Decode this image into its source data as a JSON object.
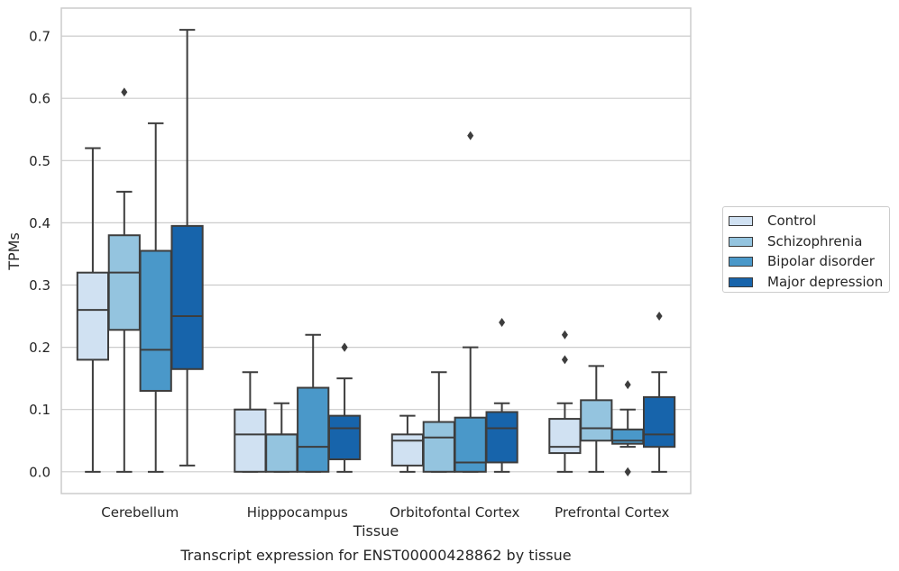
{
  "chart_data": {
    "type": "box",
    "title": "Transcript expression for ENST00000428862 by tissue",
    "xlabel": "Tissue",
    "ylabel": "TPMs",
    "ylim": [
      -0.035,
      0.745
    ],
    "yticks": [
      "0.0",
      "0.1",
      "0.2",
      "0.3",
      "0.4",
      "0.5",
      "0.6",
      "0.7"
    ],
    "categories": [
      "Cerebellum",
      "Hipppocampus",
      "Orbitofontal Cortex",
      "Prefrontal Cortex"
    ],
    "grid": "horizontal",
    "legend_position": "right",
    "series": [
      {
        "name": "Control",
        "color": "#d0e1f2",
        "boxes": [
          {
            "whislo": 0.0,
            "q1": 0.18,
            "med": 0.26,
            "q3": 0.32,
            "whishi": 0.52,
            "fliers": []
          },
          {
            "whislo": 0.0,
            "q1": 0.0,
            "med": 0.06,
            "q3": 0.1,
            "whishi": 0.16,
            "fliers": []
          },
          {
            "whislo": 0.0,
            "q1": 0.01,
            "med": 0.05,
            "q3": 0.06,
            "whishi": 0.09,
            "fliers": []
          },
          {
            "whislo": 0.0,
            "q1": 0.03,
            "med": 0.04,
            "q3": 0.085,
            "whishi": 0.11,
            "fliers": [
              0.18,
              0.22
            ]
          }
        ]
      },
      {
        "name": "Schizophrenia",
        "color": "#94c4df",
        "boxes": [
          {
            "whislo": 0.0,
            "q1": 0.228,
            "med": 0.32,
            "q3": 0.38,
            "whishi": 0.45,
            "fliers": [
              0.61
            ]
          },
          {
            "whislo": 0.0,
            "q1": 0.0,
            "med": 0.06,
            "q3": 0.06,
            "whishi": 0.11,
            "fliers": []
          },
          {
            "whislo": 0.0,
            "q1": 0.0,
            "med": 0.055,
            "q3": 0.08,
            "whishi": 0.16,
            "fliers": []
          },
          {
            "whislo": 0.0,
            "q1": 0.05,
            "med": 0.07,
            "q3": 0.115,
            "whishi": 0.17,
            "fliers": []
          }
        ]
      },
      {
        "name": "Bipolar disorder",
        "color": "#4a98c9",
        "boxes": [
          {
            "whislo": 0.0,
            "q1": 0.13,
            "med": 0.196,
            "q3": 0.355,
            "whishi": 0.56,
            "fliers": []
          },
          {
            "whislo": 0.0,
            "q1": 0.0,
            "med": 0.04,
            "q3": 0.135,
            "whishi": 0.22,
            "fliers": []
          },
          {
            "whislo": 0.0,
            "q1": 0.0,
            "med": 0.015,
            "q3": 0.087,
            "whishi": 0.2,
            "fliers": [
              0.54
            ]
          },
          {
            "whislo": 0.04,
            "q1": 0.045,
            "med": 0.05,
            "q3": 0.068,
            "whishi": 0.1,
            "fliers": [
              0.0,
              0.0,
              0.14
            ]
          }
        ]
      },
      {
        "name": "Major depression",
        "color": "#1764ab",
        "boxes": [
          {
            "whislo": 0.01,
            "q1": 0.165,
            "med": 0.25,
            "q3": 0.395,
            "whishi": 0.71,
            "fliers": []
          },
          {
            "whislo": 0.0,
            "q1": 0.02,
            "med": 0.07,
            "q3": 0.09,
            "whishi": 0.15,
            "fliers": [
              0.2,
              0.2
            ]
          },
          {
            "whislo": 0.0,
            "q1": 0.015,
            "med": 0.07,
            "q3": 0.096,
            "whishi": 0.11,
            "fliers": [
              0.24
            ]
          },
          {
            "whislo": 0.0,
            "q1": 0.04,
            "med": 0.06,
            "q3": 0.12,
            "whishi": 0.16,
            "fliers": [
              0.25
            ]
          }
        ]
      }
    ]
  }
}
